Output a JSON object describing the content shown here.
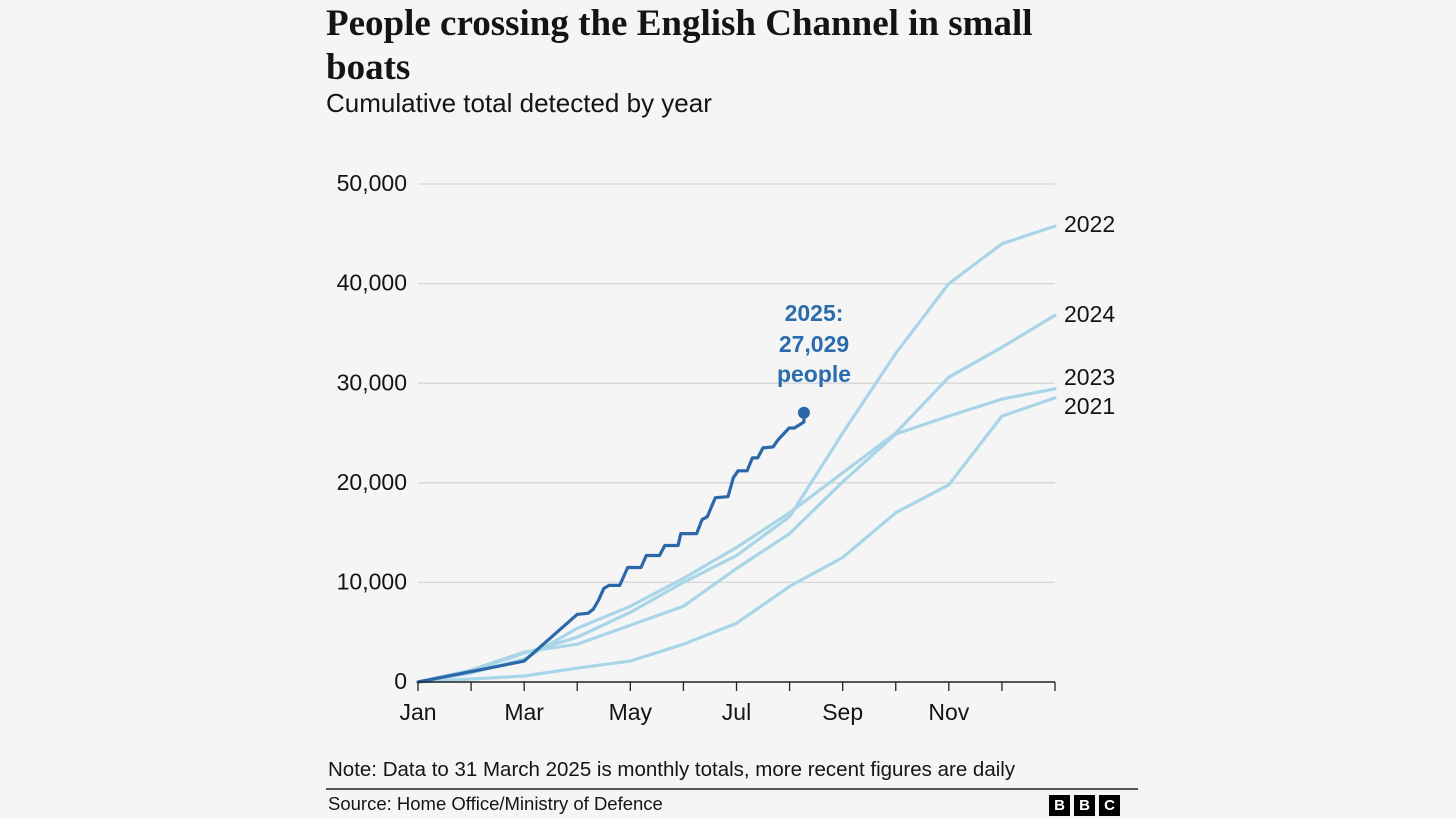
{
  "header": {
    "title": "People crossing the English Channel in small boats",
    "subtitle": "Cumulative total detected by year"
  },
  "footer": {
    "note": "Note: Data to 31 March 2025 is monthly totals, more recent figures are daily",
    "source": "Source: Home Office/Ministry of Defence",
    "logo_letters": [
      "B",
      "B",
      "C"
    ]
  },
  "colors": {
    "current_year": "#2a68a8",
    "previous_years": "#a8d5e8",
    "grid": "#d6d6d6",
    "annotation": "#2a6cad"
  },
  "chart_data": {
    "type": "line",
    "title": "People crossing the English Channel in small boats",
    "subtitle": "Cumulative total detected by year",
    "xlabel": "",
    "ylabel": "",
    "x_unit": "months since 1 January",
    "xlim": [
      0,
      12
    ],
    "ylim": [
      0,
      50000
    ],
    "grid": true,
    "yticks": [
      0,
      10000,
      20000,
      30000,
      40000,
      50000
    ],
    "ytick_labels": [
      "0",
      "10,000",
      "20,000",
      "30,000",
      "40,000",
      "50,000"
    ],
    "xticks": [
      0,
      1,
      2,
      3,
      4,
      5,
      6,
      7,
      8,
      9,
      10,
      11,
      12
    ],
    "xtick_labels": [
      {
        "month": 0,
        "label": "Jan"
      },
      {
        "month": 2,
        "label": "Mar"
      },
      {
        "month": 4,
        "label": "May"
      },
      {
        "month": 6,
        "label": "Jul"
      },
      {
        "month": 8,
        "label": "Sep"
      },
      {
        "month": 10,
        "label": "Nov"
      }
    ],
    "legend": "direct labels at right end of lines",
    "series": [
      {
        "name": "2021",
        "label": "2021",
        "x": [
          0,
          1,
          2,
          3,
          4,
          5,
          6,
          7,
          8,
          9,
          10,
          11,
          12
        ],
        "values": [
          0,
          300,
          600,
          1400,
          2100,
          3800,
          5900,
          9600,
          12500,
          17000,
          19800,
          26700,
          28526
        ]
      },
      {
        "name": "2022",
        "label": "2022",
        "x": [
          0,
          1,
          2,
          3,
          4,
          5,
          6,
          7,
          8,
          9,
          10,
          11,
          12
        ],
        "values": [
          0,
          1100,
          2900,
          4500,
          7000,
          10000,
          12700,
          16600,
          25000,
          33000,
          40000,
          44000,
          45774
        ]
      },
      {
        "name": "2023",
        "label": "2023",
        "x": [
          0,
          1,
          2,
          3,
          4,
          5,
          6,
          7,
          8,
          9,
          10,
          11,
          12
        ],
        "values": [
          0,
          1200,
          3000,
          3800,
          5700,
          7600,
          11400,
          14900,
          20100,
          24900,
          26700,
          28400,
          29437
        ]
      },
      {
        "name": "2024",
        "label": "2024",
        "x": [
          0,
          1,
          2,
          3,
          4,
          5,
          6,
          7,
          8,
          9,
          10,
          11,
          12
        ],
        "values": [
          0,
          900,
          2300,
          5400,
          7600,
          10400,
          13500,
          17000,
          21000,
          25000,
          30600,
          33600,
          36816
        ]
      },
      {
        "name": "2025",
        "current": true,
        "x": [
          0,
          2,
          3,
          3.2,
          3.3,
          3.4,
          3.5,
          3.6,
          3.8,
          3.95,
          4.2,
          4.3,
          4.55,
          4.65,
          4.9,
          4.95,
          5.25,
          5.35,
          5.45,
          5.6,
          5.84,
          5.94,
          6.03,
          6.2,
          6.3,
          6.4,
          6.5,
          6.69,
          6.78,
          6.99,
          7.09,
          7.27
        ],
        "values": [
          0,
          2100,
          6800,
          6900,
          7300,
          8200,
          9400,
          9700,
          9700,
          11500,
          11500,
          12700,
          12700,
          13700,
          13700,
          14900,
          14900,
          16300,
          16600,
          18500,
          18600,
          20500,
          21200,
          21200,
          22500,
          22500,
          23500,
          23600,
          24300,
          25500,
          25500,
          26100
        ],
        "end_value": 27029,
        "end_x": 7.27,
        "annotation": {
          "line1": "2025:",
          "line2": "27,029",
          "line3": "people"
        }
      }
    ]
  }
}
